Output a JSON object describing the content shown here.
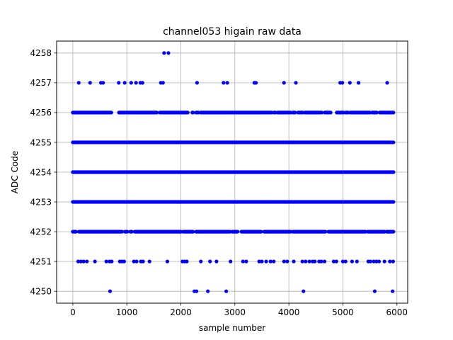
{
  "chart_data": {
    "type": "scatter",
    "title": "channel053 higain raw data",
    "xlabel": "sample number",
    "ylabel": "ADC Code",
    "xlim": [
      -300,
      6200
    ],
    "ylim": [
      4249.6,
      4258.4
    ],
    "xticks": [
      0,
      1000,
      2000,
      3000,
      4000,
      5000,
      6000
    ],
    "yticks": [
      4250,
      4251,
      4252,
      4253,
      4254,
      4255,
      4256,
      4257,
      4258
    ],
    "grid": true,
    "marker_color": "#0000ff",
    "series": [
      {
        "levels": [
          {
            "y": 4258,
            "x": [
              1690,
              1770
            ]
          },
          {
            "y": 4257,
            "x": [
              110,
              320,
              520,
              560,
              850,
              960,
              1080,
              1170,
              1250,
              1290,
              1630,
              1670,
              2300,
              2790,
              2860,
              3360,
              3390,
              3910,
              4130,
              4950,
              4990,
              5130,
              5290,
              5820
            ]
          },
          {
            "y": 4251,
            "x": [
              100,
              150,
              200,
              260,
              410,
              620,
              680,
              720,
              870,
              910,
              950,
              1130,
              1180,
              1260,
              1300,
              1420,
              1750,
              2030,
              2070,
              2110,
              2370,
              2540,
              2660,
              2920,
              3150,
              3210,
              3450,
              3500,
              3580,
              3660,
              3720,
              3910,
              3970,
              4090,
              4250,
              4310,
              4380,
              4440,
              4480,
              4560,
              4600,
              4660,
              4830,
              4880,
              5000,
              5050,
              5170,
              5260,
              5470,
              5510,
              5570,
              5620,
              5670,
              5770,
              5870,
              5930
            ]
          },
          {
            "y": 4250,
            "x": [
              690,
              2250,
              2290,
              2500,
              2840,
              4270,
              5590,
              5920
            ]
          }
        ],
        "dense_levels": [
          {
            "y": 4256,
            "x_start": 0,
            "x_end": 5940,
            "gaps": [
              [
                720,
                850
              ],
              [
                1560,
                1600
              ],
              [
                2130,
                2200
              ],
              [
                2240,
                2280
              ],
              [
                2330,
                2360
              ],
              [
                3690,
                3720
              ],
              [
                3760,
                3790
              ],
              [
                4040,
                4070
              ],
              [
                4120,
                4170
              ],
              [
                4260,
                4290
              ],
              [
                4620,
                4650
              ],
              [
                4780,
                4880
              ],
              [
                5020,
                5050
              ],
              [
                5100,
                5130
              ],
              [
                5510,
                5540
              ],
              [
                5630,
                5680
              ]
            ]
          },
          {
            "y": 4255,
            "x_start": 0,
            "x_end": 5940,
            "gaps": []
          },
          {
            "y": 4254,
            "x_start": 0,
            "x_end": 5940,
            "gaps": []
          },
          {
            "y": 4253,
            "x_start": 0,
            "x_end": 5940,
            "gaps": []
          },
          {
            "y": 4252,
            "x_start": 0,
            "x_end": 5940,
            "gaps": [
              [
                60,
                110
              ],
              [
                920,
                960
              ],
              [
                1020,
                1050
              ],
              [
                1100,
                1140
              ],
              [
                2010,
                2040
              ],
              [
                2230,
                2270
              ],
              [
                2920,
                2950
              ],
              [
                3060,
                3110
              ],
              [
                3500,
                3530
              ],
              [
                4040,
                4070
              ],
              [
                4690,
                4720
              ],
              [
                5420,
                5450
              ],
              [
                5770,
                5800
              ]
            ]
          }
        ]
      }
    ]
  }
}
